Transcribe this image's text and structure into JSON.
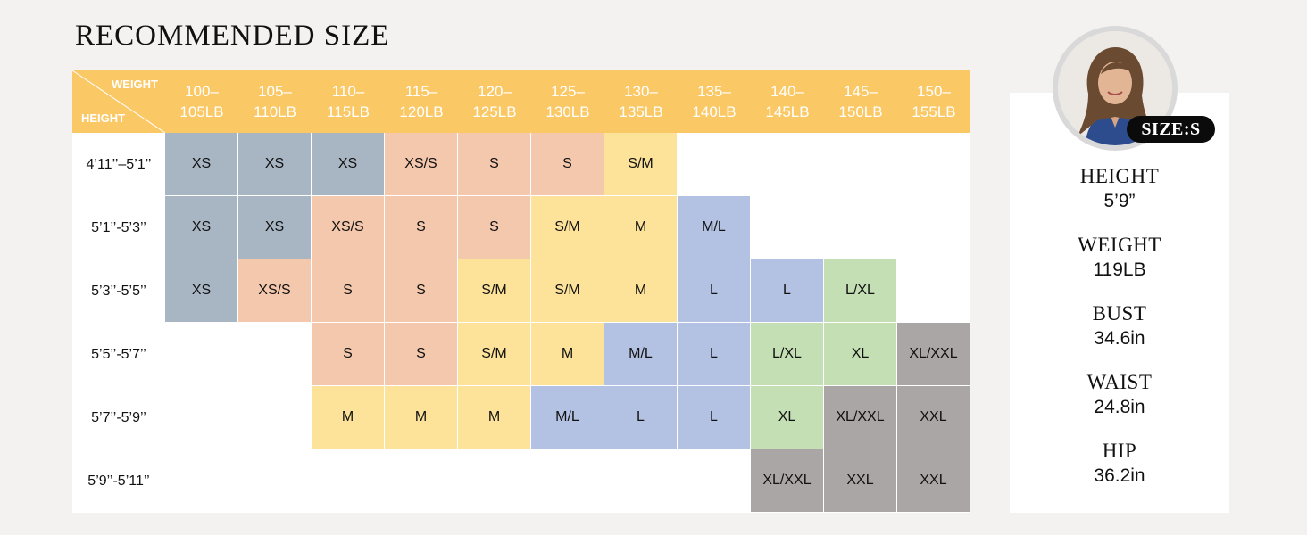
{
  "title": "RECOMMENDED SIZE",
  "corner": {
    "weight_label": "WEIGHT",
    "height_label": "HEIGHT"
  },
  "weights": [
    "100–\n105LB",
    "105–\n110LB",
    "110–\n115LB",
    "115–\n120LB",
    "120–\n125LB",
    "125–\n130LB",
    "130–\n135LB",
    "135–\n140LB",
    "140–\n145LB",
    "145–\n150LB",
    "150–\n155LB"
  ],
  "heights": [
    "4’11’’–5’1’’",
    "5’1’’-5’3’’",
    "5’3’’-5’5’’",
    "5’5’’-5’7’’",
    "5’7’’-5’9’’",
    "5’9’’-5’11’’"
  ],
  "size_colors": {
    "XS": "#a8b6c4",
    "XS/S": "#f4c8ac",
    "S": "#f4c8ac",
    "S/M": "#fde399",
    "M": "#fde399",
    "M/L": "#b3c2e2",
    "L": "#b3c2e2",
    "L/XL": "#c5dfb4",
    "XL": "#c5dfb4",
    "XL/XXL": "#aba6a6",
    "XXL": "#aba6a6"
  },
  "grid": [
    [
      "XS",
      "XS",
      "XS",
      "XS/S",
      "S",
      "S",
      "S/M",
      "",
      "",
      "",
      ""
    ],
    [
      "XS",
      "XS",
      "XS/S",
      "S",
      "S",
      "S/M",
      "M",
      "M/L",
      "",
      "",
      ""
    ],
    [
      "XS",
      "XS/S",
      "S",
      "S",
      "S/M",
      "S/M",
      "M",
      "L",
      "L",
      "L/XL",
      ""
    ],
    [
      "",
      "",
      "S",
      "S",
      "S/M",
      "M",
      "M/L",
      "L",
      "L/XL",
      "XL",
      "XL/XXL"
    ],
    [
      "",
      "",
      "M",
      "M",
      "M",
      "M/L",
      "L",
      "L",
      "XL",
      "XL/XXL",
      "XXL"
    ],
    [
      "",
      "",
      "",
      "",
      "",
      "",
      "",
      "",
      "XL/XXL",
      "XXL",
      "XXL"
    ]
  ],
  "model": {
    "size_badge": "SIZE:S",
    "stats": [
      {
        "label": "HEIGHT",
        "value": "5’9”"
      },
      {
        "label": "WEIGHT",
        "value": "119LB"
      },
      {
        "label": "BUST",
        "value": "34.6in"
      },
      {
        "label": "WAIST",
        "value": "24.8in"
      },
      {
        "label": "HIP",
        "value": "36.2in"
      }
    ]
  }
}
